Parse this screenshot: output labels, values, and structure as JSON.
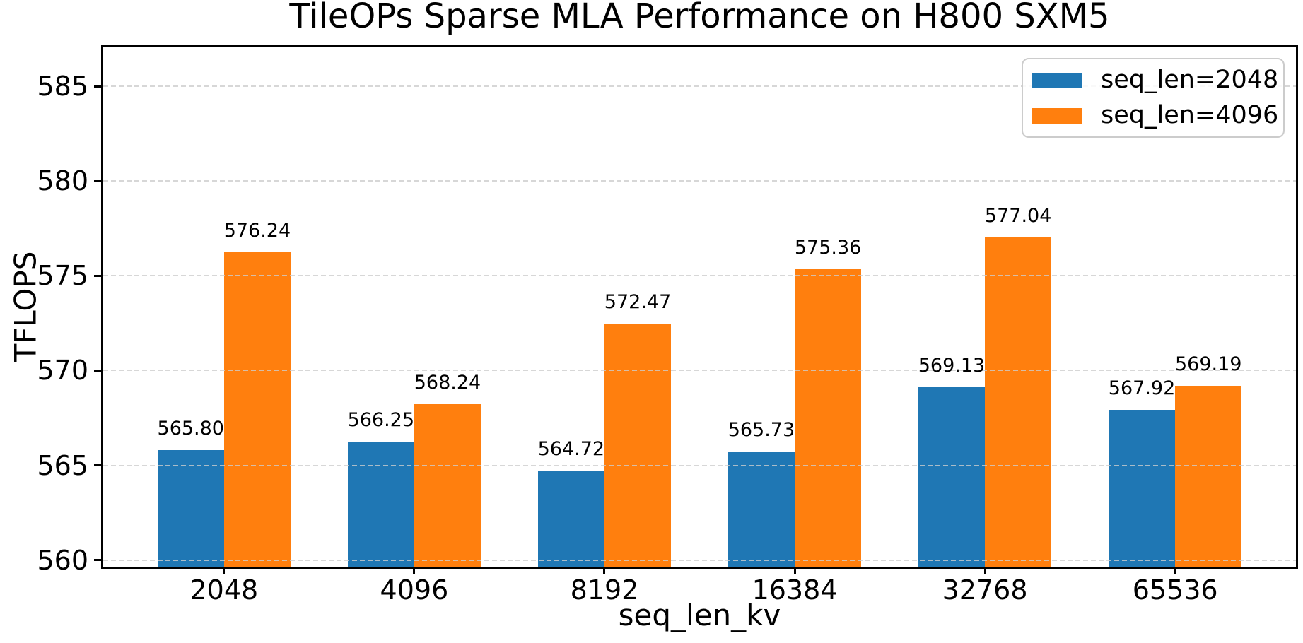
{
  "chart_data": {
    "type": "bar",
    "title": "TileOPs Sparse MLA Performance on H800 SXM5",
    "xlabel": "seq_len_kv",
    "ylabel": "TFLOPS",
    "categories": [
      "2048",
      "4096",
      "8192",
      "16384",
      "32768",
      "65536"
    ],
    "series": [
      {
        "name": "seq_len=2048",
        "color": "#1f77b4",
        "values": [
          565.8,
          566.25,
          564.72,
          565.73,
          569.13,
          567.92
        ]
      },
      {
        "name": "seq_len=4096",
        "color": "#ff7f0e",
        "values": [
          576.24,
          568.24,
          572.47,
          575.36,
          577.04,
          569.19
        ]
      }
    ],
    "bar_value_labels": true,
    "value_label_decimals": 2,
    "yticks": [
      560,
      565,
      570,
      575,
      580,
      585
    ],
    "ylim": [
      559.65,
      587.1
    ],
    "xlim": [
      -0.635,
      5.635
    ],
    "bar_width_units": 0.35,
    "grid": {
      "axis": "y",
      "style": "dashed",
      "color": "#cdcdcd",
      "above_bars": true
    },
    "legend_position": "upper right",
    "background": "#ffffff",
    "spine_color": "#000000"
  }
}
